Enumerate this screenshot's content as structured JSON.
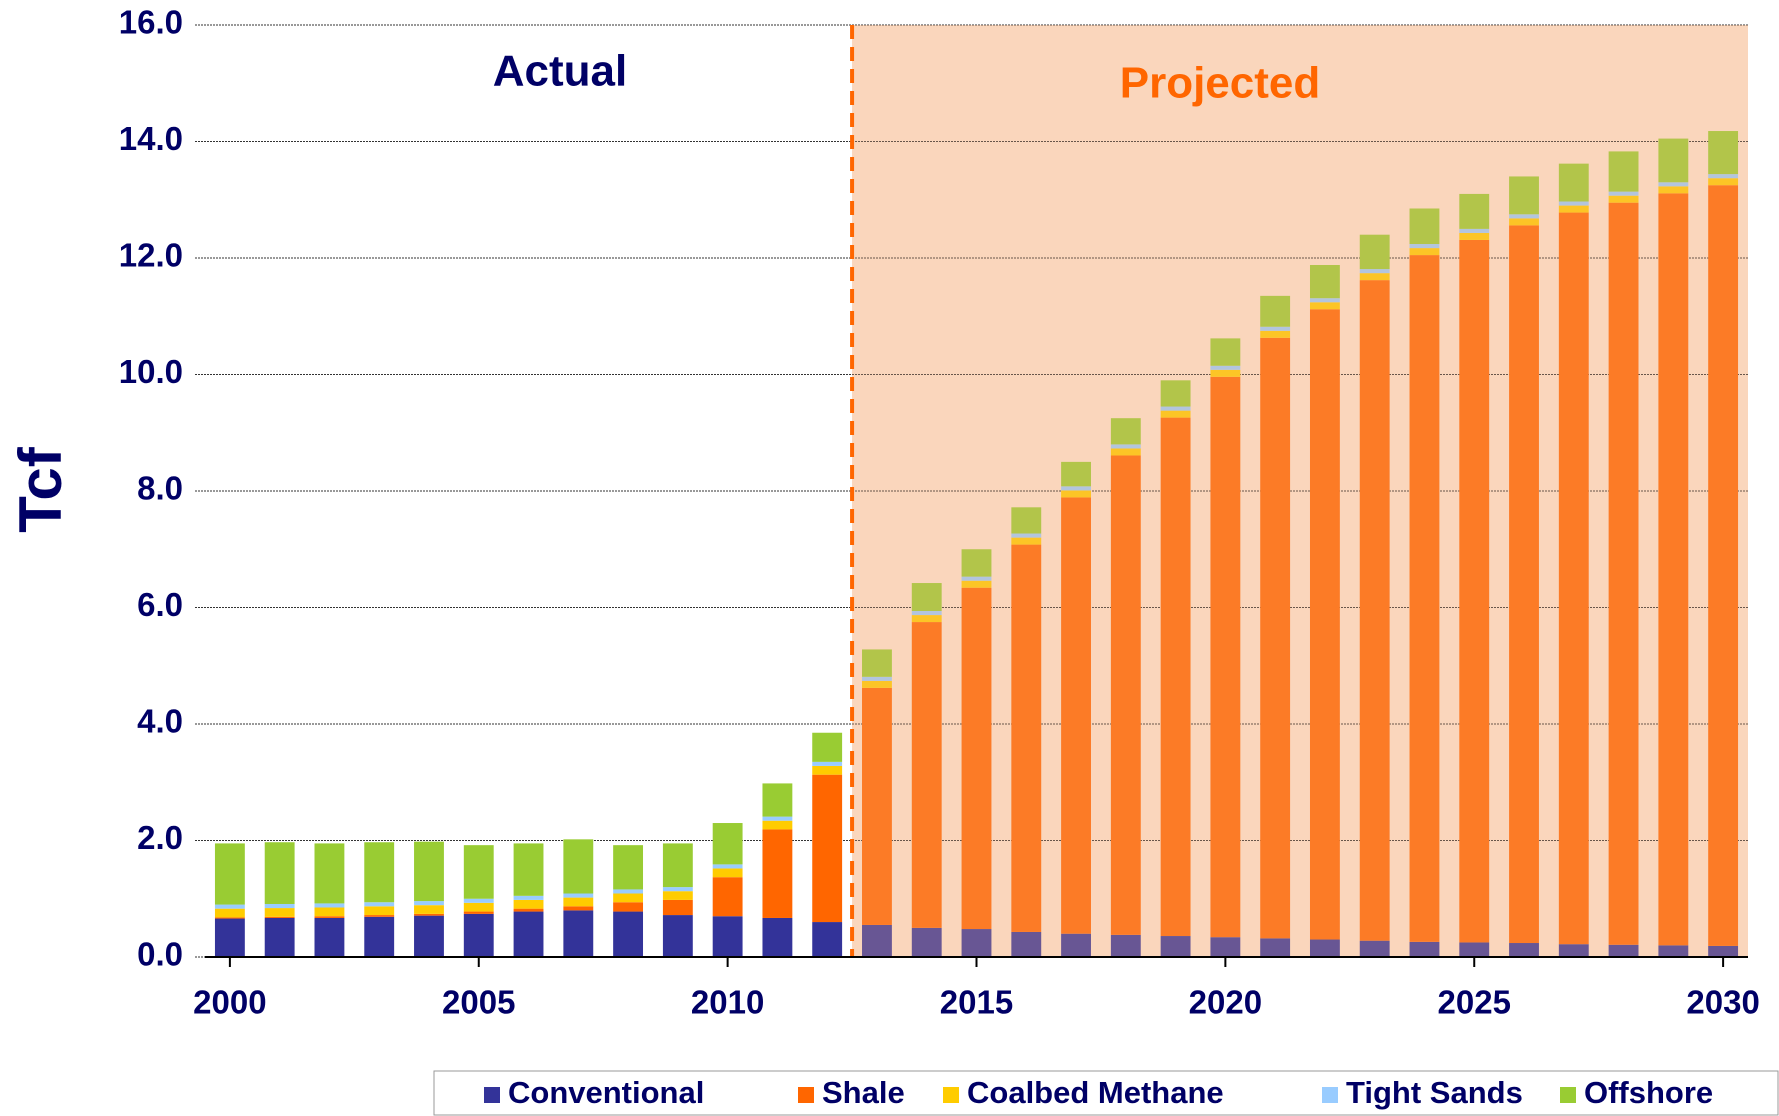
{
  "chart_data": {
    "type": "stacked_bar",
    "ylabel": "Tcf",
    "annotations": {
      "actual": "Actual",
      "projected": "Projected"
    },
    "projected_from": 2012.5,
    "x": [
      2000,
      2001,
      2002,
      2003,
      2004,
      2005,
      2006,
      2007,
      2008,
      2009,
      2010,
      2011,
      2012,
      2013,
      2014,
      2015,
      2016,
      2017,
      2018,
      2019,
      2020,
      2021,
      2022,
      2023,
      2024,
      2025,
      2026,
      2027,
      2028,
      2029,
      2030
    ],
    "xlim": [
      1999.5,
      2030.5
    ],
    "xticks": [
      2000,
      2005,
      2010,
      2015,
      2020,
      2025,
      2030
    ],
    "ylim": [
      0,
      16
    ],
    "yticks": [
      {
        "value": 0,
        "label": "0.0"
      },
      {
        "value": 2,
        "label": "2.0"
      },
      {
        "value": 4,
        "label": "4.0"
      },
      {
        "value": 6,
        "label": "6.0"
      },
      {
        "value": 8,
        "label": "8.0"
      },
      {
        "value": 10,
        "label": "10.0"
      },
      {
        "value": 12,
        "label": "12.0"
      },
      {
        "value": 14,
        "label": "14.0"
      },
      {
        "value": 16,
        "label": "16.0"
      }
    ],
    "grid": true,
    "legend": "bottom",
    "series": [
      {
        "name": "Conventional",
        "color": "#333399",
        "values": [
          0.66,
          0.67,
          0.67,
          0.69,
          0.71,
          0.74,
          0.78,
          0.8,
          0.78,
          0.72,
          0.7,
          0.67,
          0.6,
          0.55,
          0.5,
          0.48,
          0.43,
          0.4,
          0.38,
          0.36,
          0.34,
          0.32,
          0.3,
          0.28,
          0.26,
          0.25,
          0.24,
          0.22,
          0.21,
          0.2,
          0.19
        ]
      },
      {
        "name": "Shale",
        "color": "#ff6600",
        "values": [
          0.02,
          0.02,
          0.03,
          0.03,
          0.03,
          0.04,
          0.05,
          0.07,
          0.16,
          0.26,
          0.67,
          1.52,
          2.53,
          4.07,
          5.25,
          5.86,
          6.65,
          7.49,
          8.23,
          8.9,
          9.62,
          10.31,
          10.82,
          11.34,
          11.79,
          12.06,
          12.32,
          12.56,
          12.74,
          12.91,
          13.06
        ]
      },
      {
        "name": "Coalbed Methane",
        "color": "#ffcc00",
        "values": [
          0.15,
          0.15,
          0.15,
          0.15,
          0.15,
          0.15,
          0.15,
          0.15,
          0.15,
          0.15,
          0.15,
          0.15,
          0.15,
          0.12,
          0.12,
          0.12,
          0.12,
          0.12,
          0.12,
          0.12,
          0.12,
          0.12,
          0.12,
          0.12,
          0.12,
          0.12,
          0.12,
          0.12,
          0.12,
          0.12,
          0.12
        ]
      },
      {
        "name": "Tight Sands",
        "color": "#99ccff",
        "values": [
          0.07,
          0.07,
          0.07,
          0.07,
          0.07,
          0.07,
          0.07,
          0.07,
          0.07,
          0.07,
          0.07,
          0.07,
          0.07,
          0.07,
          0.07,
          0.07,
          0.07,
          0.07,
          0.07,
          0.07,
          0.07,
          0.07,
          0.07,
          0.07,
          0.07,
          0.07,
          0.07,
          0.07,
          0.07,
          0.07,
          0.07
        ]
      },
      {
        "name": "Offshore",
        "color": "#99cc33",
        "values": [
          1.05,
          1.06,
          1.03,
          1.03,
          1.02,
          0.92,
          0.9,
          0.93,
          0.76,
          0.75,
          0.71,
          0.57,
          0.5,
          0.47,
          0.48,
          0.47,
          0.45,
          0.42,
          0.45,
          0.45,
          0.47,
          0.53,
          0.57,
          0.59,
          0.61,
          0.6,
          0.65,
          0.65,
          0.69,
          0.75,
          0.74
        ]
      }
    ]
  }
}
